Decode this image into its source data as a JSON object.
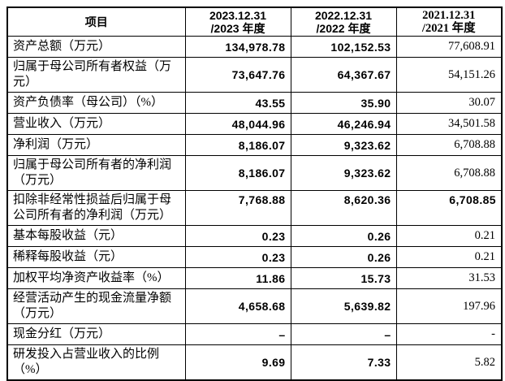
{
  "table": {
    "header": {
      "item": "项目",
      "y2023_date": "2023.12.31",
      "y2023_period": "/2023 年度",
      "y2022_date": "2022.12.31",
      "y2022_period": "/2022 年度",
      "y2021_date": "2021.12.31",
      "y2021_period": "/2021 年度"
    },
    "rows": [
      {
        "label": "资产总额（万元）",
        "y2023": "134,978.78",
        "y2022": "102,152.53",
        "y2021": "77,608.91"
      },
      {
        "label": "归属于母公司所有者权益（万元）",
        "y2023": "73,647.76",
        "y2022": "64,367.67",
        "y2021": "54,151.26"
      },
      {
        "label": "资产负债率（母公司）（%）",
        "y2023": "43.55",
        "y2022": "35.90",
        "y2021": "30.07"
      },
      {
        "label": "营业收入（万元）",
        "y2023": "48,044.96",
        "y2022": "46,246.94",
        "y2021": "34,501.58"
      },
      {
        "label": "净利润（万元）",
        "y2023": "8,186.07",
        "y2022": "9,323.62",
        "y2021": "6,708.88"
      },
      {
        "label": "归属于母公司所有者的净利润（万元）",
        "y2023": "8,186.07",
        "y2022": "9,323.62",
        "y2021": "6,708.88"
      },
      {
        "label": "扣除非经常性损益后归属于母公司所有者的净利润（万元）",
        "y2023": "7,768.88",
        "y2022": "8,620.36",
        "y2021": "6,708.85"
      },
      {
        "label": "基本每股收益（元）",
        "y2023": "0.23",
        "y2022": "0.26",
        "y2021": "0.21"
      },
      {
        "label": "稀释每股收益（元）",
        "y2023": "0.23",
        "y2022": "0.26",
        "y2021": "0.21"
      },
      {
        "label": "加权平均净资产收益率（%）",
        "y2023": "11.86",
        "y2022": "15.73",
        "y2021": "31.53"
      },
      {
        "label": "经营活动产生的现金流量净额（万元）",
        "y2023": "4,658.68",
        "y2022": "5,639.82",
        "y2021": "197.96"
      },
      {
        "label": "现金分红（万元）",
        "y2023": "–",
        "y2022": "–",
        "y2021": "-"
      },
      {
        "label": "研发投入占营业收入的比例（%）",
        "y2023": "9.69",
        "y2022": "7.33",
        "y2021": "5.82"
      }
    ]
  }
}
